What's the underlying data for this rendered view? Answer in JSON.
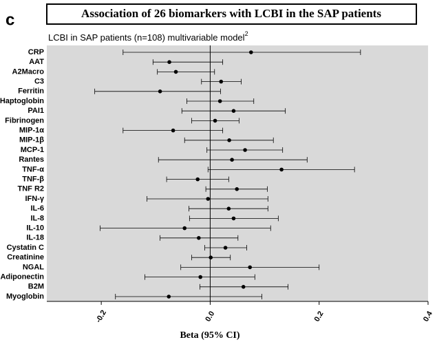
{
  "chart_data": {
    "type": "forest",
    "panel_label": "c",
    "title": "Association of 26 biomarkers with LCBI in the SAP patients",
    "subtitle": "LCBI in SAP patients (n=108) multivariable model",
    "subtitle_superscript": "2",
    "x_label": "Beta (95% CI)",
    "categories": [
      "CRP",
      "AAT",
      "A2Macro",
      "C3",
      "Ferritin",
      "Haptoglobin",
      "PAI1",
      "Fibrinogen",
      "MIP-1α",
      "MIP-1β",
      "MCP-1",
      "Rantes",
      "TNF-α",
      "TNF-β",
      "TNF R2",
      "IFN-γ",
      "IL-6",
      "IL-8",
      "IL-10",
      "IL-18",
      "Cystatin C",
      "Creatinine",
      "NGAL",
      "Adiponectin",
      "B2M",
      "Myoglobin"
    ],
    "values": [
      0.075,
      -0.075,
      -0.063,
      0.02,
      -0.092,
      0.018,
      0.043,
      0.009,
      -0.068,
      0.035,
      0.064,
      0.04,
      0.131,
      -0.023,
      0.049,
      -0.004,
      0.034,
      0.043,
      -0.047,
      -0.021,
      0.028,
      0.001,
      0.073,
      -0.018,
      0.061,
      -0.076
    ],
    "lower": [
      -0.16,
      -0.105,
      -0.097,
      -0.016,
      -0.212,
      -0.043,
      -0.052,
      -0.034,
      -0.16,
      -0.047,
      -0.006,
      -0.095,
      -0.004,
      -0.08,
      -0.008,
      -0.116,
      -0.039,
      -0.038,
      -0.202,
      -0.092,
      -0.01,
      -0.034,
      -0.054,
      -0.12,
      -0.019,
      -0.174
    ],
    "upper": [
      0.276,
      0.023,
      0.008,
      0.057,
      0.019,
      0.08,
      0.138,
      0.053,
      0.023,
      0.116,
      0.133,
      0.178,
      0.265,
      0.034,
      0.105,
      0.106,
      0.106,
      0.125,
      0.111,
      0.051,
      0.067,
      0.037,
      0.2,
      0.082,
      0.143,
      0.095
    ],
    "xlim": [
      -0.3,
      0.4
    ],
    "xticks": [
      -0.2,
      {
        "value": 0,
        "label": "0.0"
      },
      0.2,
      0.4
    ],
    "background": "#d9d9d9",
    "color": "#000000"
  }
}
